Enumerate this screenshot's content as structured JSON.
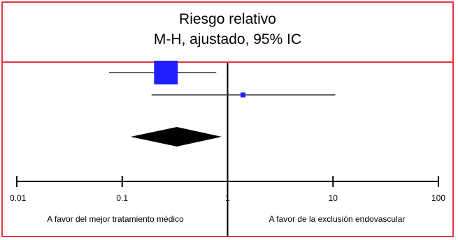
{
  "chart_data": {
    "type": "forest",
    "title": "Riesgo relativo",
    "subtitle": "M-H, ajustado, 95% IC",
    "x_scale": "log",
    "xlim": [
      0.01,
      100
    ],
    "ticks": [
      {
        "value": 0.01,
        "label": "0.01"
      },
      {
        "value": 0.1,
        "label": "0.1"
      },
      {
        "value": 1,
        "label": "1"
      },
      {
        "value": 10,
        "label": "10"
      },
      {
        "value": 100,
        "label": "100"
      }
    ],
    "reference_line": 1,
    "studies": [
      {
        "estimate": 0.26,
        "ci_low": 0.075,
        "ci_high": 0.78,
        "weight": "large"
      },
      {
        "estimate": 1.4,
        "ci_low": 0.19,
        "ci_high": 10.5,
        "weight": "small"
      }
    ],
    "pooled": {
      "estimate": 0.33,
      "ci_low": 0.12,
      "ci_high": 0.88
    },
    "favor_left": "A favor del mejor tratamiento médico",
    "favor_right": "A favor de la exclusión endovascular",
    "colors": {
      "border": "#e8333f",
      "square": "#1f1fff",
      "diamond": "#000000",
      "line": "#000000"
    }
  }
}
